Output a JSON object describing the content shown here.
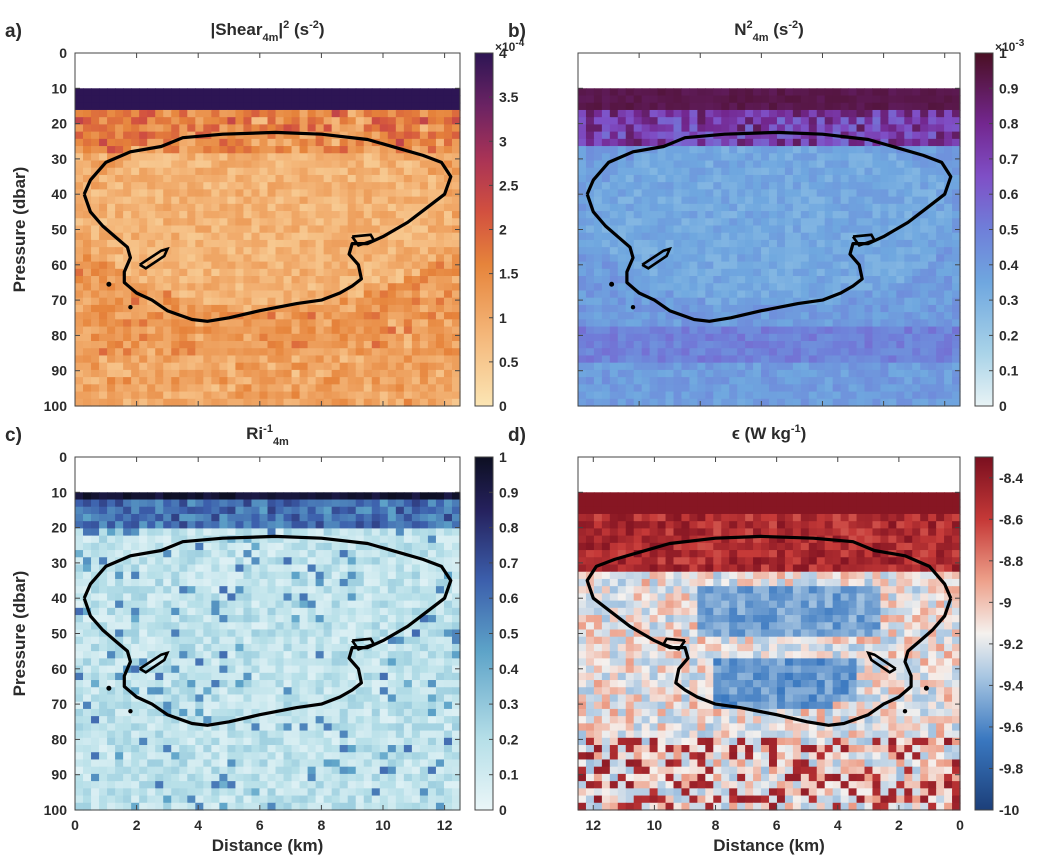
{
  "figure": {
    "y_axis_label": "Pressure (dbar)",
    "x_axis_label": "Distance (km)"
  },
  "chart_data": [
    {
      "type": "heatmap",
      "panel_label": "a)",
      "title_main": "|Shear",
      "title_sub": "4m",
      "title_tail": "|",
      "title_sup": "2",
      "title_unit": " (s",
      "title_unit_sup": "-2",
      "title_end": ")",
      "ylabel": "Pressure (dbar)",
      "xlabel": "",
      "y_ticks": [
        "0",
        "10",
        "20",
        "30",
        "40",
        "50",
        "60",
        "70",
        "80",
        "90",
        "100"
      ],
      "x_ticks": [],
      "xlim": [
        0,
        12.5
      ],
      "ylim": [
        100,
        0
      ],
      "colorbar": {
        "min": 0,
        "max": 4,
        "ticks": [
          "0",
          "0.5",
          "1",
          "1.5",
          "2",
          "2.5",
          "3",
          "3.5",
          "4"
        ],
        "exponent_base": "×10",
        "exponent": "-4",
        "colormap": "amp"
      },
      "colors": {
        "low": "#fbe5b4",
        "mid": "#e6843b",
        "high": "#2d1554"
      },
      "field": "low shear (0–1×10^-4) inside the eddy contour, elevated near 10–20 dbar surface band (saturated ≈4×10^-4)"
    },
    {
      "type": "heatmap",
      "panel_label": "b)",
      "title_main": "N",
      "title_sub": "4m",
      "title_sup": "2",
      "title_unit": " (s",
      "title_unit_sup": "-2",
      "title_end": ")",
      "ylabel": "",
      "xlabel": "",
      "y_ticks": [],
      "x_ticks": [],
      "xlim": [
        0,
        12.5
      ],
      "ylim": [
        100,
        0
      ],
      "colorbar": {
        "min": 0,
        "max": 1,
        "ticks": [
          "0",
          "0.1",
          "0.2",
          "0.3",
          "0.4",
          "0.5",
          "0.6",
          "0.7",
          "0.8",
          "0.9",
          "1"
        ],
        "exponent_base": "×10",
        "exponent": "-3",
        "colormap": "dense"
      },
      "colors": {
        "low": "#e8f3f5",
        "mid": "#5e86d8",
        "high": "#4a0f23"
      },
      "field": "strong stratification near 10–20 dbar, weaker (~0.3–0.4×10^-3) inside the eddy"
    },
    {
      "type": "heatmap",
      "panel_label": "c)",
      "title_main": "Ri",
      "title_sub": "4m",
      "title_sup": "-1",
      "title_unit": "",
      "title_unit_sup": "",
      "title_end": "",
      "ylabel": "Pressure (dbar)",
      "xlabel": "Distance (km)",
      "y_ticks": [
        "0",
        "10",
        "20",
        "30",
        "40",
        "50",
        "60",
        "70",
        "80",
        "90",
        "100"
      ],
      "x_ticks": [
        "0",
        "2",
        "4",
        "6",
        "8",
        "10",
        "12"
      ],
      "xlim": [
        0,
        12.5
      ],
      "ylim": [
        100,
        0
      ],
      "colorbar": {
        "min": 0,
        "max": 1,
        "ticks": [
          "0",
          "0.1",
          "0.2",
          "0.3",
          "0.4",
          "0.5",
          "0.6",
          "0.7",
          "0.8",
          "0.9",
          "1"
        ],
        "exponent_base": "",
        "exponent": "",
        "colormap": "ice-reversed"
      },
      "colors": {
        "low": "#eaf6f8",
        "mid": "#5da3c8",
        "high": "#0d0f22"
      },
      "field": "mostly low inverse Richardson number (<0.3), dark band at 10–15 dbar"
    },
    {
      "type": "heatmap",
      "panel_label": "d)",
      "title_main": "ϵ (W kg",
      "title_sub": "",
      "title_sup": "-1",
      "title_unit": "",
      "title_unit_sup": "",
      "title_end": ")",
      "ylabel": "",
      "xlabel": "Distance (km)",
      "y_ticks": [],
      "x_ticks": [
        "12",
        "10",
        "8",
        "6",
        "4",
        "2",
        "0"
      ],
      "xlim": [
        12.5,
        0
      ],
      "ylim": [
        100,
        0
      ],
      "colorbar": {
        "min": -10,
        "max": -8.3,
        "ticks": [
          "-10",
          "-9.8",
          "-9.6",
          "-9.4",
          "-9.2",
          "-9",
          "-8.8",
          "-8.6",
          "-8.4"
        ],
        "exponent_base": "",
        "exponent": "",
        "colormap": "balance"
      },
      "colors": {
        "low": "#1c3f7a",
        "mid": "#f5f1ee",
        "high": "#7a0f1f"
      },
      "field": "high dissipation (~-8.4) in surface layer 10–30 dbar and near bottom, lower (~-9.6) inside eddy core"
    }
  ]
}
